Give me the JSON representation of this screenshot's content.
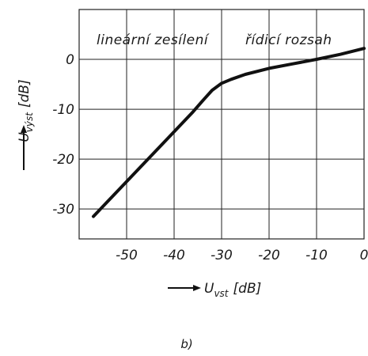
{
  "chart_data": {
    "type": "line",
    "xlim": [
      -60,
      0
    ],
    "ylim": [
      -36,
      10
    ],
    "x_ticks": [
      -50,
      -40,
      -30,
      -20,
      -10,
      0
    ],
    "y_ticks": [
      0,
      -10,
      -20,
      -30
    ],
    "x_tick_labels": [
      "-50",
      "-40",
      "-30",
      "-20",
      "-10",
      "0"
    ],
    "y_tick_labels": [
      "0",
      "-10",
      "-20",
      "-30"
    ],
    "grid": true,
    "xlabel": {
      "symbol": "U",
      "subscript": "vst",
      "unit": "[dB]"
    },
    "ylabel": {
      "symbol": "U",
      "subscript": "výst",
      "unit": "[dB]"
    },
    "annotations": [
      "lineární zesílení",
      "řídicí rozsah"
    ],
    "series": [
      {
        "x": [
          -57,
          -50,
          -40,
          -36,
          -34,
          -32,
          -30,
          -28,
          -25,
          -20,
          -15,
          -10,
          -5,
          0
        ],
        "y": [
          -31.5,
          -24.5,
          -14.5,
          -10.5,
          -8.3,
          -6.2,
          -4.8,
          -4.0,
          -3.0,
          -1.8,
          -0.9,
          0.0,
          1.0,
          2.2
        ]
      }
    ],
    "style": {
      "line_color": "#111111",
      "grid_color": "#222222"
    }
  },
  "caption": "b)"
}
